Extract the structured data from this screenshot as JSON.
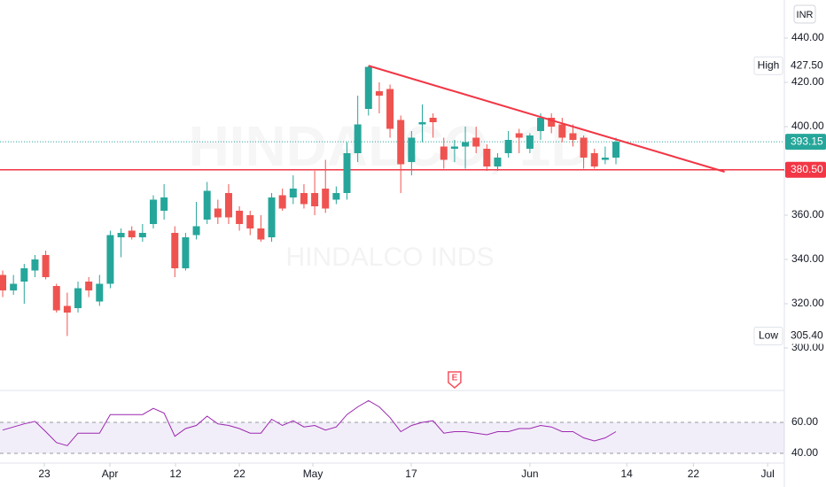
{
  "chart_data": {
    "type": "candlestick",
    "watermark": "HINDALCO, 1D",
    "watermark_name": "HINDALCO INDS",
    "currency": "INR",
    "up_color": "#26a69a",
    "down_color": "#ef5350",
    "xlim": [
      -0.25,
      72.65
    ],
    "xticks": [
      {
        "value": 3.87,
        "label": "23"
      },
      {
        "value": 9.97,
        "label": "Apr"
      },
      {
        "value": 16.06,
        "label": "12"
      },
      {
        "value": 22.0,
        "label": "22"
      },
      {
        "value": 28.83,
        "label": "May"
      },
      {
        "value": 37.97,
        "label": "17"
      },
      {
        "value": 49.0,
        "label": "Jun"
      },
      {
        "value": 58.0,
        "label": "14"
      },
      {
        "value": 64.2,
        "label": "22"
      },
      {
        "value": 71.1,
        "label": "Jul"
      }
    ],
    "ylim": [
      281.2,
      457.2
    ],
    "yticks": [
      {
        "value": 300,
        "label": "300.00"
      },
      {
        "value": 320,
        "label": "320.00"
      },
      {
        "value": 340,
        "label": "340.00"
      },
      {
        "value": 360,
        "label": "360.00"
      },
      {
        "value": 380,
        "label": "380.00"
      },
      {
        "value": 400,
        "label": "400.00"
      },
      {
        "value": 420,
        "label": "420.00"
      },
      {
        "value": 440,
        "label": "440.00"
      }
    ],
    "candles": {
      "open": [
        333,
        326,
        330,
        335,
        342,
        328,
        319,
        318,
        330,
        321,
        329,
        350,
        353,
        350,
        356,
        362,
        352,
        336,
        351,
        358,
        363,
        370,
        362,
        360,
        354,
        350,
        369,
        368,
        370,
        370,
        372,
        367,
        370,
        388,
        408,
        416,
        417,
        403,
        384,
        401,
        404,
        391,
        390,
        391,
        395,
        390,
        382,
        388,
        397,
        390,
        398,
        404,
        401,
        397,
        395,
        388,
        385,
        386
      ],
      "high": [
        335,
        333,
        338,
        342,
        344,
        329,
        325,
        330,
        332,
        333,
        353,
        354,
        355,
        356,
        369,
        374,
        355,
        352,
        366,
        375,
        367,
        374,
        364,
        362,
        360,
        370,
        372,
        378,
        374,
        380,
        385,
        373,
        393,
        414,
        427.5,
        420,
        419,
        405,
        398,
        410,
        406,
        395,
        394,
        400,
        400,
        392,
        388,
        398,
        399,
        397,
        406,
        406,
        404,
        401,
        396,
        390,
        391,
        395
      ],
      "low": [
        323,
        324,
        320,
        332,
        331,
        316,
        305.4,
        316,
        323,
        319,
        327,
        341,
        349,
        348,
        354,
        358,
        332,
        335,
        349,
        356,
        356,
        356,
        353,
        351,
        348,
        348,
        362,
        365,
        363,
        360,
        361,
        365,
        367,
        384,
        405,
        406,
        395,
        370,
        378,
        393,
        395,
        381,
        384,
        381,
        388,
        380,
        380,
        386,
        388,
        388,
        394,
        397,
        393,
        391,
        381,
        381,
        383,
        383
      ],
      "close": [
        326,
        329,
        336,
        340,
        332,
        317,
        316,
        327,
        326,
        329,
        351,
        352,
        350,
        352,
        367,
        368,
        336,
        350,
        355,
        371,
        359,
        359,
        356,
        354,
        349,
        368,
        363,
        372,
        365,
        364,
        363,
        370,
        388,
        401,
        427,
        414,
        399,
        383,
        395,
        402,
        402,
        385,
        391,
        393,
        391,
        382,
        386,
        394,
        395,
        396,
        404,
        400,
        395,
        394,
        386,
        382,
        386,
        393.15
      ]
    },
    "last_price": {
      "value": 393.15,
      "value_label": "393.15",
      "color": "#26a69a"
    },
    "high_marker": {
      "label": "High",
      "value": 427.5,
      "value_label": "427.50"
    },
    "low_marker": {
      "label": "Low",
      "value": 305.4,
      "value_label": "305.40"
    },
    "horizontal_line": {
      "value": 380.5,
      "value_label": "380.50",
      "color": "#f23645"
    },
    "trendline": {
      "x": [
        34,
        67.1
      ],
      "y": [
        427.5,
        379.6
      ],
      "color": "#f23645"
    },
    "events": [
      {
        "label": "E",
        "x": 42
      }
    ],
    "rsi": {
      "color": "#9c27b0",
      "ylim": [
        34.3,
        79.4
      ],
      "yticks": [
        {
          "value": 40,
          "label": "40.00"
        },
        {
          "value": 60,
          "label": "60.00"
        }
      ],
      "values": [
        55,
        57,
        59,
        60.6,
        54,
        47,
        45,
        53,
        53,
        53,
        65,
        65,
        65,
        65,
        69,
        66,
        51,
        56,
        58,
        64,
        59,
        58,
        56,
        53,
        53,
        62,
        58,
        61,
        57,
        58,
        55,
        57,
        65,
        70,
        74,
        70,
        63,
        54,
        58,
        60,
        61,
        53,
        54,
        54,
        53,
        52,
        54,
        54,
        56,
        56,
        58,
        57,
        54,
        54,
        50,
        48,
        50,
        54
      ]
    }
  }
}
